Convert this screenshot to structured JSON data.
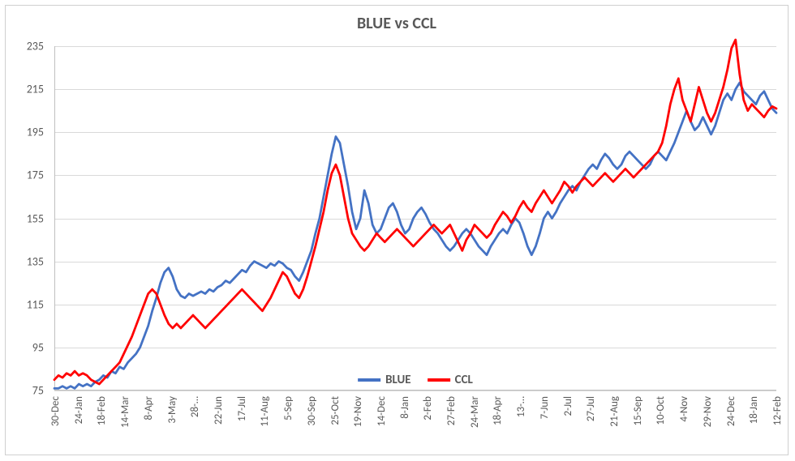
{
  "chart": {
    "type": "line",
    "title": "BLUE vs CCL",
    "title_fontsize": 20,
    "title_color": "#595959",
    "background_color": "#ffffff",
    "border_color": "#d0d0d0",
    "grid_color": "#d9d9d9",
    "axis_color": "#bfbfbf",
    "label_color": "#595959",
    "axis_fontsize": 14,
    "xlabel_fontsize": 13,
    "xlabel_rotation": -90,
    "line_width": 2.8,
    "ylim": [
      75,
      235
    ],
    "ytick_step": 20,
    "yticks": [
      75,
      95,
      115,
      135,
      155,
      175,
      195,
      215,
      235
    ],
    "x_categories": [
      "30-Dec",
      "24-Jan",
      "18-Feb",
      "14-Mar",
      "8-Apr",
      "3-May",
      "28-…",
      "22-Jun",
      "17-Jul",
      "11-Aug",
      "5-Sep",
      "30-Sep",
      "25-Oct",
      "19-Nov",
      "14-Dec",
      "8-Jan",
      "2-Feb",
      "27-Feb",
      "24-Mar",
      "18-Apr",
      "13-…",
      "7-Jun",
      "2-Jul",
      "27-Jul",
      "21-Aug",
      "15-Sep",
      "10-Oct",
      "4-Nov",
      "29-Nov",
      "24-Dec",
      "18-Jan",
      "12-Feb"
    ],
    "legend": {
      "position": "bottom-center-inside",
      "fontsize": 15,
      "fontweight": "bold",
      "items": [
        {
          "label": "BLUE",
          "color": "#4472c4"
        },
        {
          "label": "CCL",
          "color": "#ff0000"
        }
      ]
    },
    "series": [
      {
        "name": "BLUE",
        "color": "#4472c4",
        "values": [
          76,
          76,
          77,
          76,
          77,
          76,
          78,
          77,
          78,
          77,
          79,
          80,
          82,
          81,
          84,
          83,
          86,
          85,
          88,
          90,
          92,
          95,
          100,
          105,
          112,
          118,
          125,
          130,
          132,
          128,
          122,
          119,
          118,
          120,
          119,
          120,
          121,
          120,
          122,
          121,
          123,
          124,
          126,
          125,
          127,
          129,
          131,
          130,
          133,
          135,
          134,
          133,
          132,
          134,
          133,
          135,
          134,
          132,
          131,
          128,
          126,
          130,
          135,
          140,
          148,
          155,
          165,
          175,
          185,
          193,
          190,
          180,
          170,
          158,
          150,
          155,
          168,
          162,
          152,
          148,
          150,
          155,
          160,
          162,
          158,
          152,
          148,
          150,
          155,
          158,
          160,
          157,
          153,
          150,
          148,
          145,
          142,
          140,
          142,
          145,
          148,
          150,
          148,
          145,
          142,
          140,
          138,
          142,
          145,
          148,
          150,
          148,
          152,
          155,
          153,
          148,
          142,
          138,
          142,
          148,
          155,
          158,
          155,
          158,
          162,
          165,
          168,
          170,
          168,
          172,
          175,
          178,
          180,
          178,
          182,
          185,
          183,
          180,
          178,
          180,
          184,
          186,
          184,
          182,
          180,
          178,
          180,
          184,
          186,
          184,
          182,
          186,
          190,
          195,
          200,
          205,
          200,
          196,
          198,
          202,
          198,
          194,
          198,
          204,
          210,
          213,
          210,
          215,
          218,
          214,
          212,
          210,
          208,
          212,
          214,
          210,
          206,
          204
        ]
      },
      {
        "name": "CCL",
        "color": "#ff0000",
        "values": [
          80,
          82,
          81,
          83,
          82,
          84,
          82,
          83,
          82,
          80,
          79,
          78,
          80,
          82,
          84,
          86,
          88,
          92,
          96,
          100,
          105,
          110,
          115,
          120,
          122,
          120,
          115,
          110,
          106,
          104,
          106,
          104,
          106,
          108,
          110,
          108,
          106,
          104,
          106,
          108,
          110,
          112,
          114,
          116,
          118,
          120,
          122,
          120,
          118,
          116,
          114,
          112,
          115,
          118,
          122,
          126,
          130,
          128,
          124,
          120,
          118,
          122,
          128,
          135,
          142,
          150,
          158,
          168,
          176,
          180,
          175,
          165,
          155,
          148,
          145,
          142,
          140,
          142,
          145,
          148,
          146,
          144,
          146,
          148,
          150,
          148,
          146,
          144,
          142,
          144,
          146,
          148,
          150,
          152,
          150,
          148,
          150,
          152,
          148,
          144,
          140,
          145,
          148,
          152,
          150,
          148,
          146,
          148,
          152,
          155,
          158,
          156,
          153,
          156,
          160,
          163,
          160,
          158,
          162,
          165,
          168,
          165,
          162,
          165,
          168,
          172,
          170,
          167,
          170,
          172,
          174,
          172,
          170,
          172,
          174,
          176,
          174,
          172,
          174,
          176,
          178,
          176,
          174,
          176,
          178,
          180,
          182,
          184,
          186,
          190,
          198,
          208,
          215,
          220,
          210,
          205,
          200,
          208,
          216,
          210,
          204,
          200,
          204,
          210,
          216,
          224,
          234,
          238,
          222,
          210,
          205,
          208,
          206,
          204,
          202,
          205,
          207,
          206
        ]
      }
    ]
  }
}
